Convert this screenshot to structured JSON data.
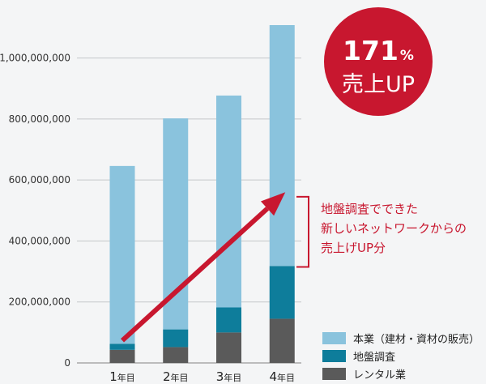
{
  "chart_data": {
    "type": "bar",
    "stacked": true,
    "categories": [
      "1年目",
      "2年目",
      "3年目",
      "4年目"
    ],
    "category_parts": [
      {
        "num": "1",
        "suffix": "年目"
      },
      {
        "num": "2",
        "suffix": "年目"
      },
      {
        "num": "3",
        "suffix": "年目"
      },
      {
        "num": "4",
        "suffix": "年目"
      }
    ],
    "series": [
      {
        "name": "レンタル業",
        "color": "#5a5a5a",
        "values": [
          43000000,
          52000000,
          100000000,
          145000000
        ]
      },
      {
        "name": "地盤調査",
        "color": "#0e7d9b",
        "values": [
          20000000,
          58000000,
          82000000,
          173000000
        ]
      },
      {
        "name": "本業（建材・資材の販売）",
        "color": "#8ac3dd",
        "values": [
          583000000,
          692000000,
          695000000,
          790000000
        ]
      }
    ],
    "legend_order": [
      "本業（建材・資材の販売）",
      "地盤調査",
      "レンタル業"
    ],
    "legend_position": "bottom-right",
    "ylim": [
      0,
      1100000000
    ],
    "yticks": [
      {
        "value": 0,
        "label": "0"
      },
      {
        "value": 200000000,
        "label": "200,000,000"
      },
      {
        "value": 400000000,
        "label": "400,000,000"
      },
      {
        "value": 600000000,
        "label": "600,000,000"
      },
      {
        "value": 800000000,
        "label": "800,000,000"
      },
      {
        "value": 1000000000,
        "label": "1,000,000,000"
      }
    ],
    "grid": true,
    "badge": {
      "line1_num": "171",
      "line1_unit": "%",
      "line2": "売上UP",
      "color": "#c8172f"
    },
    "annotation": {
      "lines": [
        "地盤調査でできた",
        "新しいネットワークからの",
        "売上げUP分"
      ],
      "color": "#c8172f"
    },
    "arrow_color": "#c8172f"
  }
}
